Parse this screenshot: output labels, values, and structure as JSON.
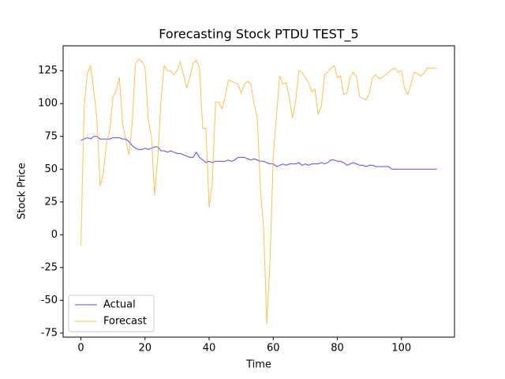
{
  "chart_data": {
    "type": "line",
    "title": "Forecasting Stock PTDU TEST_5",
    "x_label": "Time",
    "y_label": "Stock Price",
    "x": [
      0,
      1,
      2,
      3,
      4,
      5,
      6,
      7,
      8,
      9,
      10,
      11,
      12,
      13,
      14,
      15,
      16,
      17,
      18,
      19,
      20,
      21,
      22,
      23,
      24,
      25,
      26,
      27,
      28,
      29,
      30,
      31,
      32,
      33,
      34,
      35,
      36,
      37,
      38,
      39,
      40,
      41,
      42,
      43,
      44,
      45,
      46,
      47,
      48,
      49,
      50,
      51,
      52,
      53,
      54,
      55,
      56,
      57,
      58,
      59,
      60,
      61,
      62,
      63,
      64,
      65,
      66,
      67,
      68,
      69,
      70,
      71,
      72,
      73,
      74,
      75,
      76,
      77,
      78,
      79,
      80,
      81,
      82,
      83,
      84,
      85,
      86,
      87,
      88,
      89,
      90,
      91,
      92,
      93,
      94,
      95,
      96,
      97,
      98,
      99,
      100,
      101,
      102,
      103,
      104,
      105,
      106,
      107,
      108,
      109,
      110,
      111
    ],
    "series": [
      {
        "name": "Actual",
        "color": "#0000ff",
        "values": [
          72,
          73,
          74,
          73,
          75,
          75,
          73,
          73,
          73,
          73,
          74,
          74,
          74,
          73,
          73,
          71,
          68,
          66,
          65,
          65,
          66,
          65,
          66,
          67,
          67,
          64,
          64,
          63,
          64,
          63,
          62,
          62,
          61,
          60,
          59,
          59,
          63,
          59,
          57,
          55,
          56,
          55,
          56,
          56,
          56,
          56,
          57,
          56,
          57,
          59,
          59,
          59,
          58,
          57,
          58,
          57,
          56,
          56,
          55,
          54,
          54,
          52,
          53,
          54,
          53,
          54,
          54,
          54,
          55,
          53,
          54,
          53,
          54,
          54,
          54,
          55,
          54,
          55,
          57,
          57,
          56,
          56,
          55,
          53,
          54,
          55,
          54,
          53,
          53,
          52,
          53,
          53,
          52,
          52,
          52,
          52,
          52,
          50,
          50,
          50,
          50,
          50,
          50,
          50,
          50,
          50,
          50,
          50,
          50,
          50,
          50,
          50
        ]
      },
      {
        "name": "Forecast",
        "color": "#ffa500",
        "values": [
          -8,
          97,
          123,
          129,
          110,
          88,
          37,
          47,
          70,
          80,
          105,
          110,
          120,
          85,
          72,
          61,
          85,
          130,
          134,
          132,
          128,
          88,
          75,
          30,
          60,
          103,
          129,
          125,
          125,
          122,
          125,
          132,
          122,
          112,
          120,
          131,
          133,
          127,
          81,
          81,
          21,
          40,
          101,
          101,
          96,
          105,
          118,
          117,
          116,
          115,
          108,
          115,
          117,
          115,
          100,
          90,
          35,
          5,
          -68,
          -20,
          60,
          90,
          121,
          115,
          116,
          105,
          89,
          102,
          125,
          124,
          120,
          116,
          109,
          111,
          92,
          98,
          122,
          124,
          127,
          129,
          120,
          121,
          107,
          108,
          120,
          124,
          120,
          105,
          104,
          103,
          108,
          120,
          122,
          119,
          120,
          122,
          124,
          126,
          127,
          124,
          125,
          111,
          107,
          115,
          124,
          123,
          121,
          123,
          127,
          127,
          127,
          127
        ]
      }
    ],
    "xlim": [
      -5.55,
      116.55
    ],
    "xticks": [
      0,
      20,
      40,
      60,
      80,
      100
    ],
    "ylim": [
      -78.1,
      144.1
    ],
    "yticks": [
      -75,
      -50,
      -25,
      0,
      25,
      50,
      75,
      100,
      125
    ],
    "legend": "lower left"
  }
}
